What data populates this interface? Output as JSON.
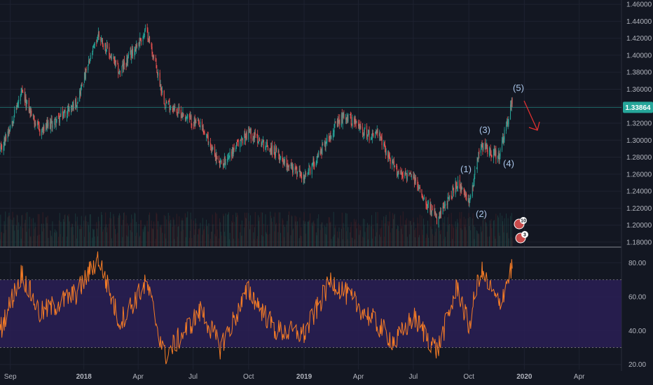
{
  "chart_data": [
    {
      "type": "candlestick",
      "pane": "price",
      "x_axis_labels": [
        "Sep",
        "2018",
        "Apr",
        "Jul",
        "Oct",
        "2019",
        "Apr",
        "Jul",
        "Oct",
        "2020",
        "Apr"
      ],
      "bold_labels": [
        "2018",
        "2019",
        "2020"
      ],
      "y_ticks": [
        "1.46000",
        "1.44000",
        "1.42000",
        "1.40000",
        "1.38000",
        "1.36000",
        "1.34000",
        "1.32000",
        "1.30000",
        "1.28000",
        "1.26000",
        "1.24000",
        "1.22000",
        "1.20000",
        "1.18000"
      ],
      "ylim": [
        1.175,
        1.465
      ],
      "last_price_label": "1.33864",
      "last_price": 1.33864,
      "key_points": [
        {
          "date": "2017-08-15",
          "close": 1.285
        },
        {
          "date": "2017-09-20",
          "close": 1.355
        },
        {
          "date": "2017-10-20",
          "close": 1.31
        },
        {
          "date": "2017-11-20",
          "close": 1.325
        },
        {
          "date": "2017-12-20",
          "close": 1.345
        },
        {
          "date": "2018-01-25",
          "close": 1.425
        },
        {
          "date": "2018-03-01",
          "close": 1.38
        },
        {
          "date": "2018-04-15",
          "close": 1.43
        },
        {
          "date": "2018-05-15",
          "close": 1.345
        },
        {
          "date": "2018-07-15",
          "close": 1.315
        },
        {
          "date": "2018-08-15",
          "close": 1.27
        },
        {
          "date": "2018-10-01",
          "close": 1.31
        },
        {
          "date": "2018-11-15",
          "close": 1.285
        },
        {
          "date": "2019-01-02",
          "close": 1.255
        },
        {
          "date": "2019-02-15",
          "close": 1.31
        },
        {
          "date": "2019-03-10",
          "close": 1.33
        },
        {
          "date": "2019-04-20",
          "close": 1.305
        },
        {
          "date": "2019-05-01",
          "close": 1.31
        },
        {
          "date": "2019-06-01",
          "close": 1.265
        },
        {
          "date": "2019-07-01",
          "close": 1.255
        },
        {
          "date": "2019-08-10",
          "close": 1.205
        },
        {
          "date": "2019-09-12",
          "close": 1.25
        },
        {
          "date": "2019-10-01",
          "close": 1.225
        },
        {
          "date": "2019-10-20",
          "close": 1.295
        },
        {
          "date": "2019-11-20",
          "close": 1.28
        },
        {
          "date": "2019-12-12",
          "close": 1.345
        }
      ],
      "wave_labels": [
        "(1)",
        "(2)",
        "(3)",
        "(4)",
        "(5)"
      ],
      "event_badges": [
        "10",
        "3"
      ]
    },
    {
      "type": "line",
      "pane": "rsi",
      "y_ticks": [
        "80.00",
        "60.00",
        "40.00",
        "20.00"
      ],
      "ylim": [
        17,
        88
      ],
      "overbought": 70,
      "oversold": 30,
      "key_points": [
        {
          "date": "2017-08-15",
          "value": 40
        },
        {
          "date": "2017-09-20",
          "value": 74
        },
        {
          "date": "2017-10-20",
          "value": 50
        },
        {
          "date": "2017-12-20",
          "value": 62
        },
        {
          "date": "2018-01-25",
          "value": 83
        },
        {
          "date": "2018-03-01",
          "value": 45
        },
        {
          "date": "2018-04-15",
          "value": 68
        },
        {
          "date": "2018-05-15",
          "value": 25
        },
        {
          "date": "2018-07-15",
          "value": 52
        },
        {
          "date": "2018-08-15",
          "value": 30
        },
        {
          "date": "2018-10-01",
          "value": 64
        },
        {
          "date": "2018-11-15",
          "value": 40
        },
        {
          "date": "2019-01-02",
          "value": 38
        },
        {
          "date": "2019-02-15",
          "value": 70
        },
        {
          "date": "2019-04-20",
          "value": 48
        },
        {
          "date": "2019-06-01",
          "value": 33
        },
        {
          "date": "2019-07-01",
          "value": 48
        },
        {
          "date": "2019-08-10",
          "value": 28
        },
        {
          "date": "2019-09-12",
          "value": 66
        },
        {
          "date": "2019-10-01",
          "value": 42
        },
        {
          "date": "2019-10-20",
          "value": 76
        },
        {
          "date": "2019-11-20",
          "value": 55
        },
        {
          "date": "2019-12-12",
          "value": 78
        }
      ]
    }
  ],
  "colors": {
    "background": "#131722",
    "grid": "#1e2230",
    "up": "#26a69a",
    "down": "#ef5350",
    "rsi_line": "#f57c26",
    "rsi_band": "#2a1f55",
    "axis_text": "#b2b5be",
    "wave_text": "#a9c4e8",
    "arrow": "#e03030",
    "last_price_tag": "#26a69a"
  }
}
